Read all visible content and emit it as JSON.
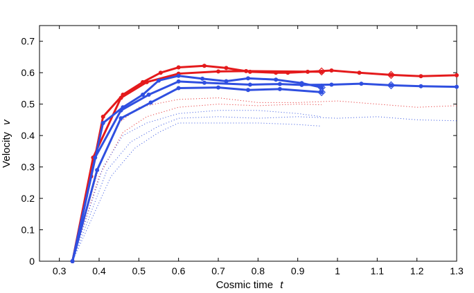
{
  "chart_data": {
    "type": "line",
    "title": "",
    "xlabel": "Cosmic time",
    "xlabel_symbol": "t",
    "ylabel": "Velocity",
    "ylabel_symbol": "v",
    "xlim": [
      0.25,
      1.3
    ],
    "ylim": [
      0,
      0.75
    ],
    "xticks": [
      0.3,
      0.4,
      0.5,
      0.6,
      0.7,
      0.8,
      0.9,
      1,
      1.1,
      1.2,
      1.3
    ],
    "yticks": [
      0,
      0.1,
      0.2,
      0.3,
      0.4,
      0.5,
      0.6,
      0.7
    ],
    "grid": false,
    "colors": {
      "red": "#e41a1c",
      "blue": "#2f4fe0"
    },
    "series": [
      {
        "name": "red-1",
        "color": "red",
        "style": "solid-markers",
        "x": [
          0.333,
          0.38,
          0.41,
          0.46,
          0.51,
          0.555,
          0.6,
          0.665,
          0.72,
          0.78,
          0.845,
          0.875,
          0.925,
          0.985,
          1.055,
          1.135,
          1.21,
          1.3
        ],
        "y": [
          0,
          0.27,
          0.46,
          0.53,
          0.57,
          0.6,
          0.617,
          0.622,
          0.615,
          0.603,
          0.6,
          0.6,
          0.603,
          0.607,
          0.6,
          0.593,
          0.589,
          0.592
        ],
        "diamonds": [
          [
            0.96,
            0.604
          ],
          [
            1.135,
            0.593
          ]
        ]
      },
      {
        "name": "red-2",
        "color": "red",
        "style": "solid-markers",
        "x": [
          0.333,
          0.385,
          0.455,
          0.52,
          0.6,
          0.7,
          0.77,
          0.96
        ],
        "y": [
          0,
          0.33,
          0.52,
          0.57,
          0.597,
          0.604,
          0.605,
          0.603
        ]
      },
      {
        "name": "blue-1",
        "color": "blue",
        "style": "solid-markers",
        "x": [
          0.333,
          0.41,
          0.46,
          0.51,
          0.55,
          0.6,
          0.66,
          0.72,
          0.775,
          0.845,
          0.91,
          0.96
        ],
        "y": [
          0,
          0.44,
          0.49,
          0.53,
          0.575,
          0.59,
          0.581,
          0.573,
          0.582,
          0.578,
          0.567,
          0.553
        ],
        "diamonds": [
          [
            0.96,
            0.553
          ]
        ]
      },
      {
        "name": "blue-2",
        "color": "blue",
        "style": "solid-markers",
        "x": [
          0.333,
          0.39,
          0.455,
          0.525,
          0.6,
          0.665,
          0.78,
          0.855,
          0.91,
          0.985,
          1.06,
          1.135,
          1.21,
          1.3
        ],
        "y": [
          0,
          0.33,
          0.48,
          0.53,
          0.572,
          0.568,
          0.562,
          0.564,
          0.561,
          0.562,
          0.565,
          0.56,
          0.557,
          0.555
        ],
        "diamonds": [
          [
            1.135,
            0.56
          ]
        ]
      },
      {
        "name": "blue-3",
        "color": "blue",
        "style": "solid-markers",
        "x": [
          0.333,
          0.395,
          0.455,
          0.53,
          0.6,
          0.7,
          0.775,
          0.855,
          0.96
        ],
        "y": [
          0,
          0.29,
          0.455,
          0.505,
          0.551,
          0.553,
          0.545,
          0.548,
          0.538
        ],
        "diamonds": [
          [
            0.96,
            0.538
          ]
        ]
      },
      {
        "name": "red-dotted-1",
        "color": "red",
        "style": "dotted",
        "x": [
          0.333,
          0.4,
          0.45,
          0.5,
          0.56,
          0.6,
          0.7,
          0.8,
          0.9,
          1.0,
          1.1,
          1.2,
          1.3
        ],
        "y": [
          0,
          0.3,
          0.44,
          0.49,
          0.505,
          0.515,
          0.52,
          0.505,
          0.505,
          0.51,
          0.5,
          0.49,
          0.495
        ]
      },
      {
        "name": "red-dotted-2",
        "color": "red",
        "style": "dotted",
        "x": [
          0.333,
          0.4,
          0.46,
          0.52,
          0.6,
          0.7,
          0.8,
          0.9,
          0.96
        ],
        "y": [
          0,
          0.27,
          0.41,
          0.46,
          0.49,
          0.5,
          0.495,
          0.5,
          0.498
        ]
      },
      {
        "name": "blue-dotted-1",
        "color": "blue",
        "style": "dotted",
        "x": [
          0.333,
          0.41,
          0.46,
          0.52,
          0.6,
          0.7,
          0.8,
          0.9,
          0.96
        ],
        "y": [
          0,
          0.3,
          0.4,
          0.44,
          0.47,
          0.48,
          0.48,
          0.47,
          0.46
        ]
      },
      {
        "name": "blue-dotted-2",
        "color": "blue",
        "style": "dotted",
        "x": [
          0.333,
          0.42,
          0.48,
          0.55,
          0.6,
          0.7,
          0.8,
          0.9,
          1.0,
          1.1,
          1.2,
          1.3
        ],
        "y": [
          0,
          0.29,
          0.38,
          0.43,
          0.455,
          0.46,
          0.455,
          0.46,
          0.455,
          0.46,
          0.45,
          0.447
        ]
      },
      {
        "name": "blue-dotted-3",
        "color": "blue",
        "style": "dotted",
        "x": [
          0.333,
          0.43,
          0.49,
          0.55,
          0.6,
          0.7,
          0.8,
          0.9,
          0.96
        ],
        "y": [
          0,
          0.27,
          0.36,
          0.41,
          0.44,
          0.44,
          0.44,
          0.435,
          0.43
        ]
      }
    ]
  }
}
